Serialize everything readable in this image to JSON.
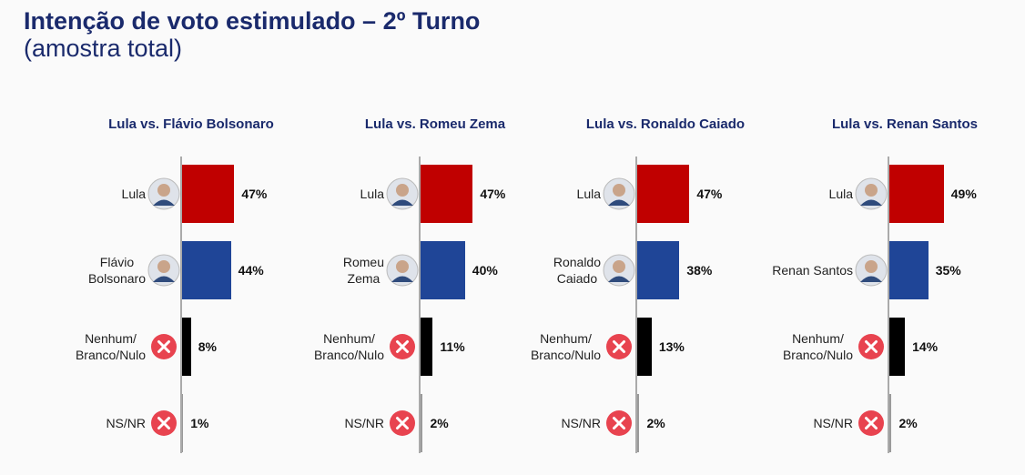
{
  "title": "Intenção de voto estimulado – 2º Turno",
  "subtitle": "(amostra total)",
  "chart_data": [
    {
      "type": "bar",
      "title": "Lula vs. Flávio Bolsonaro",
      "categories": [
        "Lula",
        "Flávio\nBolsonaro",
        "Nenhum/\nBranco/Nulo",
        "NS/NR"
      ],
      "values": [
        47,
        44,
        8,
        1
      ],
      "value_labels": [
        "47%",
        "44%",
        "8%",
        "1%"
      ],
      "colors": [
        "#c00000",
        "#1f4597",
        "#000000",
        "#9a9a9a"
      ]
    },
    {
      "type": "bar",
      "title": "Lula vs. Romeu Zema",
      "categories": [
        "Lula",
        "Romeu\nZema",
        "Nenhum/\nBranco/Nulo",
        "NS/NR"
      ],
      "values": [
        47,
        40,
        11,
        2
      ],
      "value_labels": [
        "47%",
        "40%",
        "11%",
        "2%"
      ],
      "colors": [
        "#c00000",
        "#1f4597",
        "#000000",
        "#9a9a9a"
      ]
    },
    {
      "type": "bar",
      "title": "Lula vs. Ronaldo Caiado",
      "categories": [
        "Lula",
        "Ronaldo\nCaiado",
        "Nenhum/\nBranco/Nulo",
        "NS/NR"
      ],
      "values": [
        47,
        38,
        13,
        2
      ],
      "value_labels": [
        "47%",
        "38%",
        "13%",
        "2%"
      ],
      "colors": [
        "#c00000",
        "#1f4597",
        "#000000",
        "#9a9a9a"
      ]
    },
    {
      "type": "bar",
      "title": "Lula vs. Renan Santos",
      "categories": [
        "Lula",
        "Renan Santos",
        "Nenhum/\nBranco/Nulo",
        "NS/NR"
      ],
      "values": [
        49,
        35,
        14,
        2
      ],
      "value_labels": [
        "49%",
        "35%",
        "14%",
        "2%"
      ],
      "colors": [
        "#c00000",
        "#1f4597",
        "#000000",
        "#9a9a9a"
      ]
    }
  ]
}
